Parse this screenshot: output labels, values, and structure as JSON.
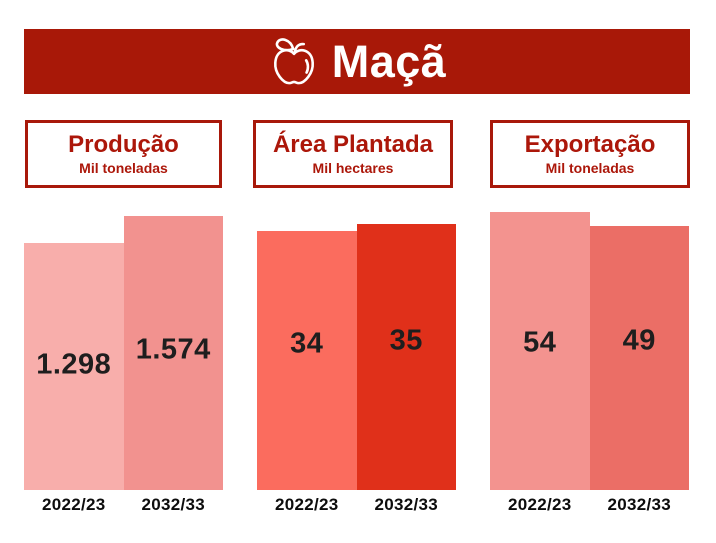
{
  "header": {
    "title": "Maçã",
    "icon": "apple-icon",
    "bg_color": "#a81808",
    "text_color": "#ffffff"
  },
  "panels": [
    {
      "title": "Produção",
      "subtitle": "Mil toneladas"
    },
    {
      "title": "Área Plantada",
      "subtitle": "Mil hectares"
    },
    {
      "title": "Exportação",
      "subtitle": "Mil toneladas"
    }
  ],
  "colors": {
    "banner_red": "#a81808",
    "panel_border_red": "#a8180a",
    "panel_text_red": "#ac170a",
    "value_text": "#1e1e1e",
    "category_text": "#0d0d0d"
  },
  "chart_data": {
    "type": "bar",
    "categories": [
      "2022/23",
      "2032/33"
    ],
    "groups": [
      {
        "name": "Produção",
        "unit": "Mil toneladas",
        "series": [
          {
            "category": "2022/23",
            "label": "1.298",
            "value": 1298,
            "color": "#f8aeab"
          },
          {
            "category": "2032/33",
            "label": "1.574",
            "value": 1574,
            "color": "#f2928f"
          }
        ]
      },
      {
        "name": "Área Plantada",
        "unit": "Mil hectares",
        "series": [
          {
            "category": "2022/23",
            "label": "34",
            "value": 34,
            "color": "#fb6c5e"
          },
          {
            "category": "2032/33",
            "label": "35",
            "value": 35,
            "color": "#e0301a"
          }
        ]
      },
      {
        "name": "Exportação",
        "unit": "Mil toneladas",
        "series": [
          {
            "category": "2022/23",
            "label": "54",
            "value": 54,
            "color": "#f3938f"
          },
          {
            "category": "2032/33",
            "label": "49",
            "value": 49,
            "color": "#eb6e66"
          }
        ]
      }
    ],
    "legend": "none",
    "grid": false,
    "value_labels_inside_bars": true
  }
}
